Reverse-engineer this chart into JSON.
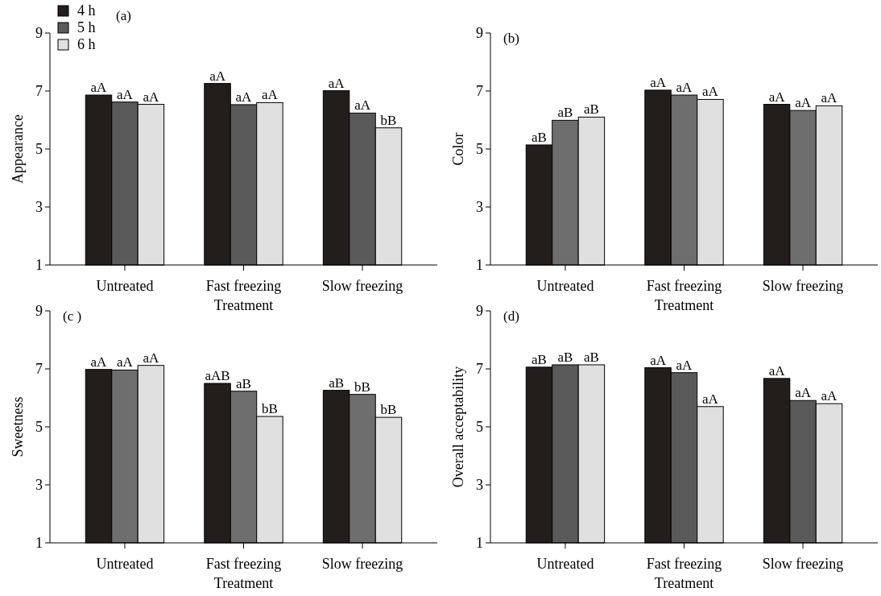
{
  "chart_data": [
    {
      "type": "bar",
      "title": "(a)",
      "xlabel": "Treatment",
      "ylabel": "Appearance",
      "categories": [
        "Untreated",
        "Fast freezing",
        "Slow freezing"
      ],
      "ylim": [
        1,
        9
      ],
      "yticks": [
        1,
        3,
        5,
        7,
        9
      ],
      "legend": "top left",
      "series": [
        {
          "name": "4 h",
          "color": "#221e1c",
          "values": [
            6.86,
            7.26,
            7.01
          ],
          "value_labels": [
            "aA",
            "aA",
            "aA"
          ]
        },
        {
          "name": "5 h",
          "color": "#5a5a5a",
          "values": [
            6.62,
            6.53,
            6.24
          ],
          "value_labels": [
            "aA",
            "aA",
            "aA"
          ]
        },
        {
          "name": "6 h",
          "color": "#e0e0e0",
          "values": [
            6.54,
            6.6,
            5.73
          ],
          "value_labels": [
            "aA",
            "aA",
            "bB"
          ]
        }
      ]
    },
    {
      "type": "bar",
      "title": "(b)",
      "xlabel": "Treatment",
      "ylabel": "Color",
      "categories": [
        "Untreated",
        "Fast freezing",
        "Slow freezing"
      ],
      "ylim": [
        1,
        9
      ],
      "yticks": [
        1,
        3,
        5,
        7,
        9
      ],
      "series": [
        {
          "color": "#221e1c",
          "values": [
            5.14,
            7.03,
            6.54
          ],
          "value_labels": [
            "aB",
            "aA",
            "aA"
          ]
        },
        {
          "color": "#6e6e6e",
          "values": [
            5.99,
            6.86,
            6.33
          ],
          "value_labels": [
            "aB",
            "aA",
            "aA"
          ]
        },
        {
          "color": "#e0e0e0",
          "values": [
            6.1,
            6.71,
            6.49
          ],
          "value_labels": [
            "aB",
            "aA",
            "aA"
          ]
        }
      ]
    },
    {
      "type": "bar",
      "title": "(c )",
      "xlabel": "Treatment",
      "ylabel": "Sweetness",
      "categories": [
        "Untreated",
        "Fast freezing",
        "Slow freezing"
      ],
      "ylim": [
        1,
        9
      ],
      "yticks": [
        1,
        3,
        5,
        7,
        9
      ],
      "series": [
        {
          "color": "#221e1c",
          "values": [
            6.98,
            6.5,
            6.26
          ],
          "value_labels": [
            "aA",
            "aAB",
            "aB"
          ]
        },
        {
          "color": "#6e6e6e",
          "values": [
            6.96,
            6.23,
            6.12
          ],
          "value_labels": [
            "aA",
            "aB",
            "bB"
          ]
        },
        {
          "color": "#e0e0e0",
          "values": [
            7.12,
            5.36,
            5.33
          ],
          "value_labels": [
            "aA",
            "bB",
            "bB"
          ]
        }
      ]
    },
    {
      "type": "bar",
      "title": "(d)",
      "xlabel": "Treatment",
      "ylabel": "Overall acceptability",
      "categories": [
        "Untreated",
        "Fast freezing",
        "Slow freezing"
      ],
      "ylim": [
        1,
        9
      ],
      "yticks": [
        1,
        3,
        5,
        7,
        9
      ],
      "series": [
        {
          "color": "#221e1c",
          "values": [
            7.06,
            7.04,
            6.67
          ],
          "value_labels": [
            "aB",
            "aA",
            "aA"
          ]
        },
        {
          "color": "#5a5a5a",
          "values": [
            7.14,
            6.87,
            5.91
          ],
          "value_labels": [
            "aB",
            "aA",
            "aA"
          ]
        },
        {
          "color": "#e0e0e0",
          "values": [
            7.14,
            5.7,
            5.8
          ],
          "value_labels": [
            "aB",
            "aA",
            "aA"
          ]
        }
      ]
    }
  ]
}
